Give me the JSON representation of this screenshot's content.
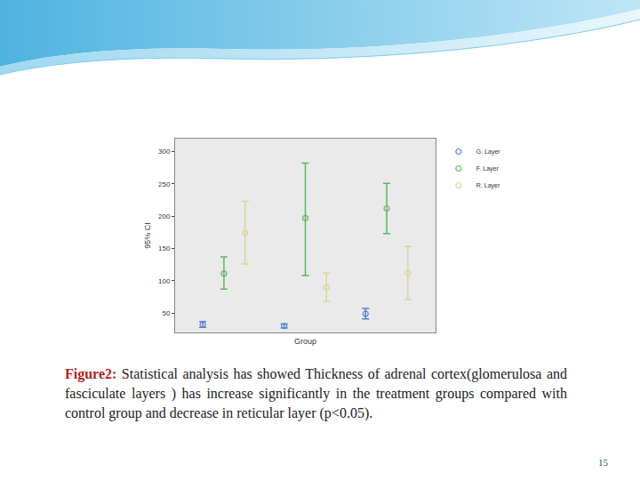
{
  "chart_data": {
    "type": "scatter",
    "categories": [
      null,
      null,
      null
    ],
    "x_label": "Group",
    "y_label": "95% CI",
    "ylim": [
      20,
      320
    ],
    "yticks": [
      50,
      100,
      150,
      200,
      250,
      300
    ],
    "grid": false,
    "legend": "upper right",
    "tick_labels": "y",
    "series": [
      {
        "name": "G. Layer",
        "color": "#5b7fd6",
        "marker": "circle-open",
        "values": [
          32,
          30,
          49
        ],
        "lower": [
          28,
          27,
          41
        ],
        "upper": [
          37,
          33,
          57
        ]
      },
      {
        "name": "F. Layer",
        "color": "#5cb85c",
        "marker": "circle-open",
        "values": [
          111,
          197,
          212
        ],
        "lower": [
          87,
          108,
          173
        ],
        "upper": [
          137,
          282,
          251
        ]
      },
      {
        "name": "R. Layer",
        "color": "#d9d69a",
        "marker": "circle-open",
        "values": [
          174,
          90,
          112
        ],
        "lower": [
          126,
          68,
          71
        ],
        "upper": [
          223,
          112,
          153
        ]
      }
    ]
  },
  "caption": {
    "label": "Figure2:",
    "text": "Statistical analysis has showed  Thickness of adrenal cortex(glomerulosa and fasciculate layers ) has increase significantly in the treatment groups compared with control group and decrease in reticular layer (p<0.05)."
  },
  "slide_number": "15"
}
